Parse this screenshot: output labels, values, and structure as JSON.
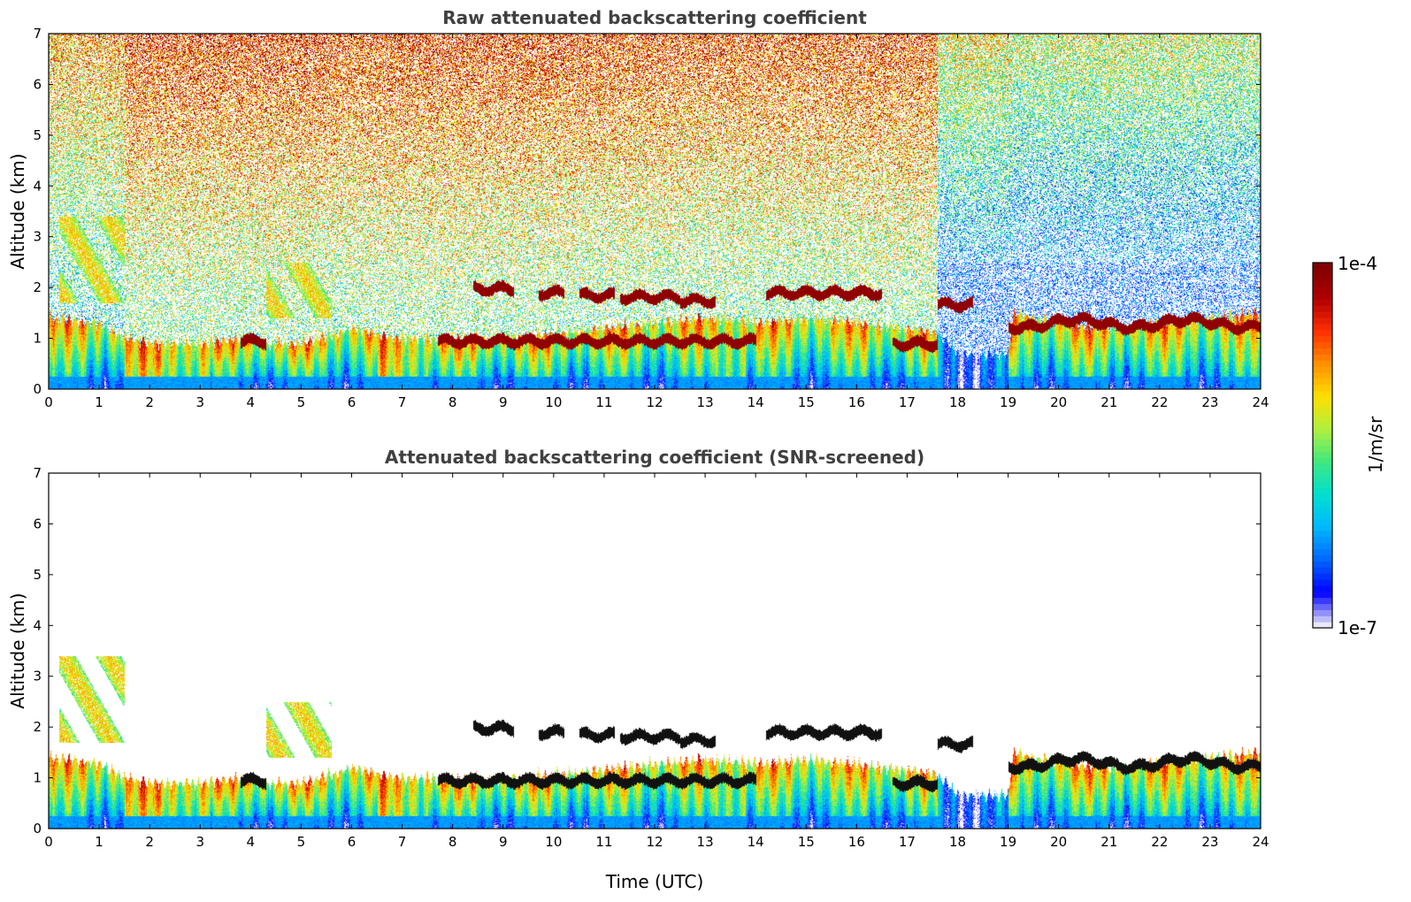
{
  "colors": {
    "background": "#ffffff",
    "title": "#404040",
    "colormap": [
      "#e8e8f8",
      "#0000ff",
      "#0066ff",
      "#00b8ff",
      "#00e0d0",
      "#40e880",
      "#b0f040",
      "#ffe000",
      "#ff9000",
      "#ff3000",
      "#b00000",
      "#800000"
    ],
    "black_layer": "#111111"
  },
  "chart_data": [
    {
      "type": "heatmap",
      "title": "Raw attenuated backscattering coefficient",
      "ylabel": "Altitude (km)",
      "xlabel": "",
      "xlim": [
        0,
        24
      ],
      "ylim": [
        0,
        7
      ],
      "xticks": [
        "0",
        "1",
        "2",
        "3",
        "4",
        "5",
        "6",
        "7",
        "8",
        "9",
        "10",
        "11",
        "12",
        "13",
        "14",
        "15",
        "16",
        "17",
        "18",
        "19",
        "20",
        "21",
        "22",
        "23",
        "24"
      ],
      "yticks": [
        "0",
        "1",
        "2",
        "3",
        "4",
        "5",
        "6",
        "7"
      ],
      "screened": false,
      "boundary_layer_top": [
        [
          0,
          1.4
        ],
        [
          1,
          1.3
        ],
        [
          1.5,
          1.0
        ],
        [
          2,
          0.9
        ],
        [
          3,
          0.9
        ],
        [
          3.8,
          1.0
        ],
        [
          4.3,
          0.9
        ],
        [
          5,
          0.9
        ],
        [
          6,
          1.2
        ],
        [
          7,
          1.0
        ],
        [
          8,
          1.0
        ],
        [
          9,
          1.0
        ],
        [
          10,
          1.1
        ],
        [
          11,
          1.2
        ],
        [
          12,
          1.3
        ],
        [
          13,
          1.4
        ],
        [
          14,
          1.3
        ],
        [
          15,
          1.4
        ],
        [
          16,
          1.3
        ],
        [
          17,
          1.2
        ],
        [
          17.6,
          1.1
        ],
        [
          18,
          0.7
        ],
        [
          19,
          0.7
        ],
        [
          19.1,
          1.5
        ],
        [
          20,
          1.3
        ],
        [
          21,
          1.2
        ],
        [
          22,
          1.3
        ],
        [
          23,
          1.4
        ],
        [
          24,
          1.5
        ]
      ],
      "cloud_layers": [
        {
          "x0": 3.8,
          "x1": 4.3,
          "y": 0.95
        },
        {
          "x0": 7.7,
          "x1": 14.0,
          "y": 0.95
        },
        {
          "x0": 8.4,
          "x1": 9.2,
          "y": 1.98
        },
        {
          "x0": 9.7,
          "x1": 10.2,
          "y": 1.9
        },
        {
          "x0": 10.5,
          "x1": 11.2,
          "y": 1.85
        },
        {
          "x0": 11.3,
          "x1": 12.5,
          "y": 1.82
        },
        {
          "x0": 12.5,
          "x1": 13.2,
          "y": 1.75
        },
        {
          "x0": 14.2,
          "x1": 16.5,
          "y": 1.9
        },
        {
          "x0": 16.7,
          "x1": 17.6,
          "y": 0.9
        },
        {
          "x0": 17.6,
          "x1": 18.3,
          "y": 1.67
        },
        {
          "x0": 19.0,
          "x1": 24.0,
          "y": 1.3
        }
      ],
      "elevated_aerosol": [
        {
          "x0": 0.2,
          "x1": 1.5,
          "y0": 1.7,
          "y1": 3.4
        },
        {
          "x0": 4.3,
          "x1": 5.6,
          "y0": 1.4,
          "y1": 2.5
        }
      ]
    },
    {
      "type": "heatmap",
      "title": "Attenuated backscattering coefficient (SNR-screened)",
      "ylabel": "Altitude (km)",
      "xlabel": "Time (UTC)",
      "xlim": [
        0,
        24
      ],
      "ylim": [
        0,
        7
      ],
      "xticks": [
        "0",
        "1",
        "2",
        "3",
        "4",
        "5",
        "6",
        "7",
        "8",
        "9",
        "10",
        "11",
        "12",
        "13",
        "14",
        "15",
        "16",
        "17",
        "18",
        "19",
        "20",
        "21",
        "22",
        "23",
        "24"
      ],
      "yticks": [
        "0",
        "1",
        "2",
        "3",
        "4",
        "5",
        "6",
        "7"
      ],
      "screened": true
    }
  ],
  "colorbar": {
    "max_label": "1e-4",
    "min_label": "1e-7",
    "unit_label": "1/m/sr",
    "scale": "log",
    "range": [
      1e-07,
      0.0001
    ]
  }
}
